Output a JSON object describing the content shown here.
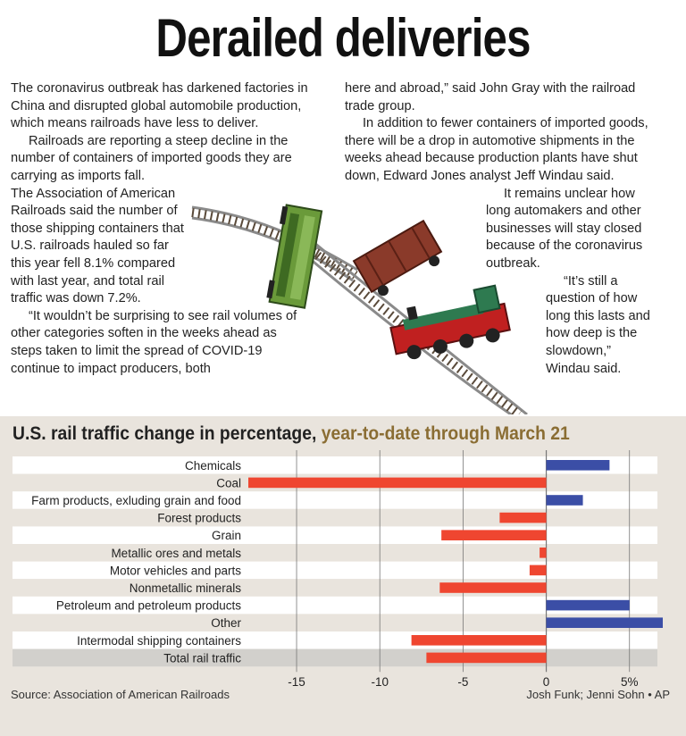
{
  "headline": "Derailed deliveries",
  "article": {
    "left": [
      "The coronavirus outbreak has darkened factories in China and disrupted global automobile production, which means railroads have less to deliver.",
      "Railroads are reporting a steep decline in the number of containers of imported goods they are carrying as imports fall.",
      "The Association of American Railroads said the number of those shipping containers that U.S. railroads hauled so far this year fell 8.1% compared with last year, and total rail traffic was down 7.2%.",
      "“It wouldn’t be surprising to see rail volumes of other categories soften in the weeks ahead as steps taken to limit the spread of COVID-19 continue to impact producers, both"
    ],
    "right": [
      "here and abroad,” said John Gray with the railroad trade group.",
      "In addition to fewer containers of imported goods, there will be a drop in automotive shipments in the weeks ahead because production plants have shut down, Edward Jones analyst Jeff Windau said.",
      "It remains unclear how long automakers and other businesses will stay closed because of the coronavirus outbreak.",
      "“It’s still a question of how long this lasts and how deep is the slowdown,” Windau said."
    ]
  },
  "chart_data": {
    "type": "bar",
    "orientation": "horizontal",
    "title": "U.S. rail traffic change in percentage,",
    "subtitle": "year-to-date through March 21",
    "categories": [
      "Chemicals",
      "Coal",
      "Farm products, exluding grain and food",
      "Forest products",
      "Grain",
      "Metallic ores and metals",
      "Motor vehicles and parts",
      "Nonmetallic minerals",
      "Petroleum and petroleum products",
      "Other",
      "Intermodal shipping containers",
      "Total rail traffic"
    ],
    "values": [
      3.8,
      -17.9,
      2.2,
      -2.8,
      -6.3,
      -0.4,
      -1.0,
      -6.4,
      5.0,
      7.0,
      -8.1,
      -7.2
    ],
    "xlim": [
      -17.9,
      7.0
    ],
    "ticks": [
      -15,
      -10,
      -5,
      0,
      5
    ],
    "tick_labels": [
      "-15",
      "-10",
      "-5",
      "0",
      "5%"
    ],
    "highlight": "Total rail traffic",
    "colors": {
      "positive": "#3b4ea6",
      "negative": "#ef4630",
      "row_even": "#ffffff",
      "row_odd": "#e9e4dd",
      "row_total": "#d2d0cc",
      "grid": "#777777"
    }
  },
  "source": "Source: Association of American Railroads",
  "credit": "Josh Funk; Jenni Sohn • AP"
}
